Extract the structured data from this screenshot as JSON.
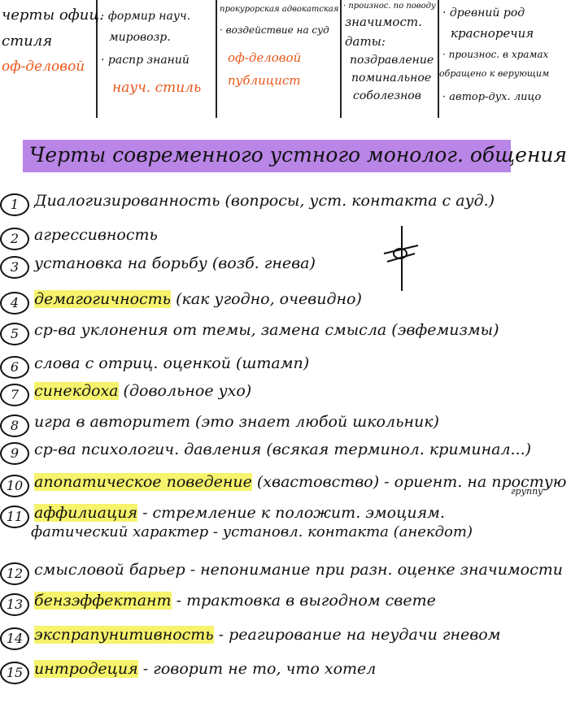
{
  "top_table": {
    "col1": {
      "line1": "черты офиц.",
      "line2": "стиля",
      "line3": "оф-деловой"
    },
    "col2": {
      "line1": "· формир науч.",
      "line2": "мировозр.",
      "line3": "· распр знаний",
      "line4": "науч. стиль"
    },
    "col3": {
      "line1": "прокурорская адвокатская",
      "line2": "· воздействие на суд",
      "line3": "оф-деловой",
      "line4": "публицист"
    },
    "col4": {
      "line1": "· произнос. по поводу",
      "line2": "значимост.",
      "line3": "даты:",
      "line4": "поздравление",
      "line5": "поминальное",
      "line6": "соболезнов"
    },
    "col5": {
      "line1": "· древний род",
      "line2": "красноречия",
      "line3": "· произнос. в храмах",
      "line4": "обращено к верующим",
      "line5": "· автор-дух. лицо"
    }
  },
  "heading": "Черты современного устного монолог. общения",
  "items": [
    {
      "n": "1",
      "text": "Диалогизированность (вопросы, уст. контакта с ауд.)",
      "hl": ""
    },
    {
      "n": "2",
      "text": "агрессивность",
      "hl": ""
    },
    {
      "n": "3",
      "text": "установка на борьбу (возб. гнева)",
      "hl": ""
    },
    {
      "n": "4",
      "hl": "демагогичность",
      "text": " (как угодно, очевидно)"
    },
    {
      "n": "5",
      "text": "ср-ва уклонения от темы, замена смысла (эвфемизмы)",
      "hl": ""
    },
    {
      "n": "6",
      "text": "слова с отриц. оценкой (штамп)",
      "hl": ""
    },
    {
      "n": "7",
      "hl": "синекдоха",
      "text": " (довольное ухо)"
    },
    {
      "n": "8",
      "text": "игра в авторитет (это знает любой школьник)",
      "hl": ""
    },
    {
      "n": "9",
      "text": "ср-ва психологич. давления (всякая терминол. криминал...)",
      "hl": ""
    },
    {
      "n": "10",
      "hl": "апопатическое поведение",
      "text": " (хвастовство) - ориент. на простую",
      "sub": "группу"
    },
    {
      "n": "11",
      "hl": "аффилиация",
      "text": " - стремление к положит. эмоциям."
    },
    {
      "n": "12",
      "text": "смысловой барьер - непонимание при разн. оценке значимости",
      "hl": ""
    },
    {
      "n": "13",
      "hl": "бензэффектант",
      "text": " - трактовка в выгодном свете"
    },
    {
      "n": "14",
      "hl": "экспрапунитивность",
      "text": " - реагирование на неудачи гневом"
    },
    {
      "n": "15",
      "hl": "интродеция",
      "text": " - говорит не то, что хотел"
    }
  ],
  "extra_line": "фатический характер - установл. контакта (анекдот)",
  "colors": {
    "heading_bg": "#b985e6",
    "highlight": "#f6f36c",
    "orange": "#e8571a"
  }
}
